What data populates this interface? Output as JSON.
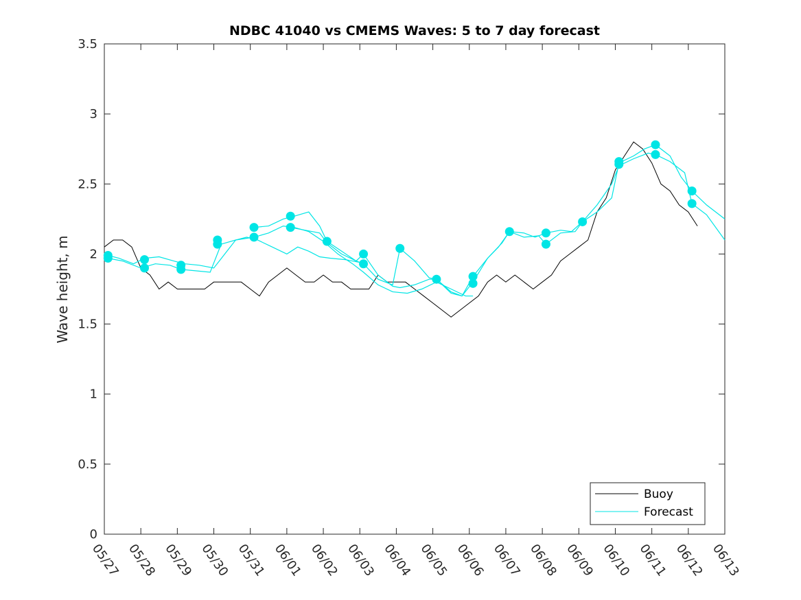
{
  "chart_data": {
    "type": "line",
    "title": "NDBC 41040 vs CMEMS Waves: 5 to 7 day forecast",
    "ylabel": "Wave height, m",
    "xlabel": "",
    "ylim": [
      0,
      3.5
    ],
    "xlim": [
      0,
      17
    ],
    "yticks": [
      0,
      0.5,
      1,
      1.5,
      2,
      2.5,
      3,
      3.5
    ],
    "ytick_labels": [
      "0",
      "0.5",
      "1",
      "1.5",
      "2",
      "2.5",
      "3",
      "3.5"
    ],
    "xtick_labels": [
      "05/27",
      "05/28",
      "05/29",
      "05/30",
      "05/31",
      "06/01",
      "06/02",
      "06/03",
      "06/04",
      "06/05",
      "06/06",
      "06/07",
      "06/08",
      "06/09",
      "06/10",
      "06/11",
      "06/12",
      "06/13"
    ],
    "x_unit": "days since 05/27",
    "legend": {
      "position": "bottom-right",
      "entries": [
        "Buoy",
        "Forecast"
      ]
    },
    "colors": {
      "buoy": "#000000",
      "forecast": "#00e5e5"
    },
    "series": [
      {
        "name": "Buoy",
        "x": [
          0,
          0.25,
          0.5,
          0.75,
          1,
          1.25,
          1.5,
          1.75,
          2,
          2.25,
          2.5,
          2.75,
          3,
          3.25,
          3.5,
          3.75,
          4,
          4.25,
          4.5,
          4.75,
          5,
          5.25,
          5.5,
          5.75,
          6,
          6.25,
          6.5,
          6.75,
          7,
          7.25,
          7.5,
          7.75,
          8,
          8.25,
          8.5,
          8.75,
          9,
          9.25,
          9.5,
          9.75,
          10,
          10.25,
          10.5,
          10.75,
          11,
          11.25,
          11.5,
          11.75,
          12,
          12.25,
          12.5,
          12.75,
          13,
          13.25,
          13.5,
          13.75,
          14,
          14.25,
          14.5,
          14.75,
          15,
          15.25,
          15.5,
          15.75,
          16,
          16.25
        ],
        "values": [
          2.05,
          2.1,
          2.1,
          2.05,
          1.9,
          1.85,
          1.75,
          1.8,
          1.75,
          1.75,
          1.75,
          1.75,
          1.8,
          1.8,
          1.8,
          1.8,
          1.75,
          1.7,
          1.8,
          1.85,
          1.9,
          1.85,
          1.8,
          1.8,
          1.85,
          1.8,
          1.8,
          1.75,
          1.75,
          1.75,
          1.85,
          1.8,
          1.8,
          1.8,
          1.75,
          1.7,
          1.65,
          1.6,
          1.55,
          1.6,
          1.65,
          1.7,
          1.8,
          1.85,
          1.8,
          1.85,
          1.8,
          1.75,
          1.8,
          1.85,
          1.95,
          2.0,
          2.05,
          2.1,
          2.3,
          2.4,
          2.6,
          2.7,
          2.8,
          2.75,
          2.65,
          2.5,
          2.45,
          2.35,
          2.3,
          2.2
        ]
      },
      {
        "name": "Forecast",
        "x": [
          0.1,
          0.4,
          0.8,
          1.1,
          1.5,
          1.9,
          2.2,
          2.6,
          3.0,
          3.3,
          3.6,
          3.9,
          4.2,
          4.6,
          5.0,
          5.3,
          5.6,
          5.9,
          6.2,
          6.6,
          7.0
        ],
        "values": [
          1.99,
          1.97,
          1.93,
          1.97,
          1.98,
          1.95,
          1.93,
          1.92,
          1.9,
          2.0,
          2.1,
          2.12,
          2.1,
          2.05,
          2.0,
          2.05,
          2.02,
          1.98,
          1.97,
          1.96,
          1.94
        ]
      },
      {
        "name": "Forecast",
        "x": [
          0.1,
          0.5,
          1.0,
          1.4,
          1.8,
          2.1,
          2.5,
          2.9,
          3.2,
          3.6,
          4.1,
          4.5,
          4.9,
          5.2,
          5.6,
          6.0,
          6.4,
          6.8,
          7.1,
          7.5,
          7.9,
          8.3,
          8.7,
          9.1,
          9.5,
          9.9,
          10.1
        ],
        "values": [
          1.97,
          1.95,
          1.9,
          1.93,
          1.92,
          1.89,
          1.88,
          1.87,
          2.07,
          2.1,
          2.12,
          2.15,
          2.2,
          2.19,
          2.16,
          2.09,
          2.0,
          1.93,
          1.87,
          1.78,
          1.73,
          1.72,
          1.75,
          1.8,
          1.75,
          1.7,
          1.7
        ]
      },
      {
        "name": "Forecast",
        "x": [
          4.1,
          4.5,
          4.9,
          5.2,
          5.6,
          5.9,
          6.1,
          6.5,
          6.9,
          7.1,
          7.5,
          7.9,
          8.1,
          8.5,
          8.9,
          9.1,
          9.5,
          9.8,
          10.1,
          10.5,
          10.8,
          11.1,
          11.5,
          11.8,
          12.1,
          12.5,
          12.8,
          13.1,
          13.5,
          13.9,
          14.1,
          14.5,
          14.8,
          15.1,
          15.5,
          15.8,
          16.1,
          16.5,
          17
        ],
        "values": [
          2.19,
          2.2,
          2.25,
          2.27,
          2.3,
          2.2,
          2.09,
          2.02,
          1.95,
          2.0,
          1.85,
          1.77,
          1.76,
          1.78,
          1.82,
          1.82,
          1.72,
          1.7,
          1.84,
          1.97,
          2.05,
          2.16,
          2.15,
          2.12,
          2.15,
          2.17,
          2.16,
          2.23,
          2.3,
          2.4,
          2.65,
          2.7,
          2.75,
          2.78,
          2.7,
          2.55,
          2.45,
          2.35,
          2.25
        ]
      },
      {
        "name": "Forecast",
        "x": [
          5.1,
          5.5,
          5.9,
          6.1,
          6.5,
          6.9,
          7.1,
          7.5,
          7.9,
          8.1,
          8.5,
          8.9,
          9.1,
          9.5,
          9.8,
          10.1,
          10.5,
          10.9,
          11.1,
          11.5,
          11.9,
          12.1,
          12.5,
          12.9,
          13.1,
          13.5,
          13.9,
          14.1,
          14.5,
          14.9,
          15.1,
          15.5,
          15.9,
          16.1,
          16.5,
          17
        ],
        "values": [
          2.19,
          2.17,
          2.15,
          2.08,
          2.0,
          1.95,
          1.93,
          1.82,
          1.78,
          2.04,
          1.95,
          1.83,
          1.82,
          1.73,
          1.7,
          1.8,
          1.97,
          2.08,
          2.16,
          2.12,
          2.13,
          2.07,
          2.15,
          2.16,
          2.23,
          2.35,
          2.5,
          2.63,
          2.68,
          2.72,
          2.71,
          2.66,
          2.58,
          2.36,
          2.28,
          2.1
        ]
      }
    ],
    "markers": {
      "x": [
        0.1,
        0.1,
        1.1,
        1.1,
        2.1,
        2.1,
        3.1,
        3.1,
        4.1,
        4.1,
        5.1,
        5.1,
        6.1,
        7.1,
        7.1,
        8.1,
        9.1,
        10.1,
        10.1,
        11.1,
        12.1,
        12.1,
        13.1,
        14.1,
        14.1,
        15.1,
        15.1,
        16.1,
        16.1
      ],
      "values": [
        1.99,
        1.97,
        1.96,
        1.9,
        1.92,
        1.89,
        2.1,
        2.07,
        2.19,
        2.12,
        2.27,
        2.19,
        2.09,
        2.0,
        1.93,
        2.04,
        1.82,
        1.84,
        1.79,
        2.16,
        2.15,
        2.07,
        2.23,
        2.66,
        2.64,
        2.78,
        2.71,
        2.45,
        2.36
      ]
    }
  }
}
